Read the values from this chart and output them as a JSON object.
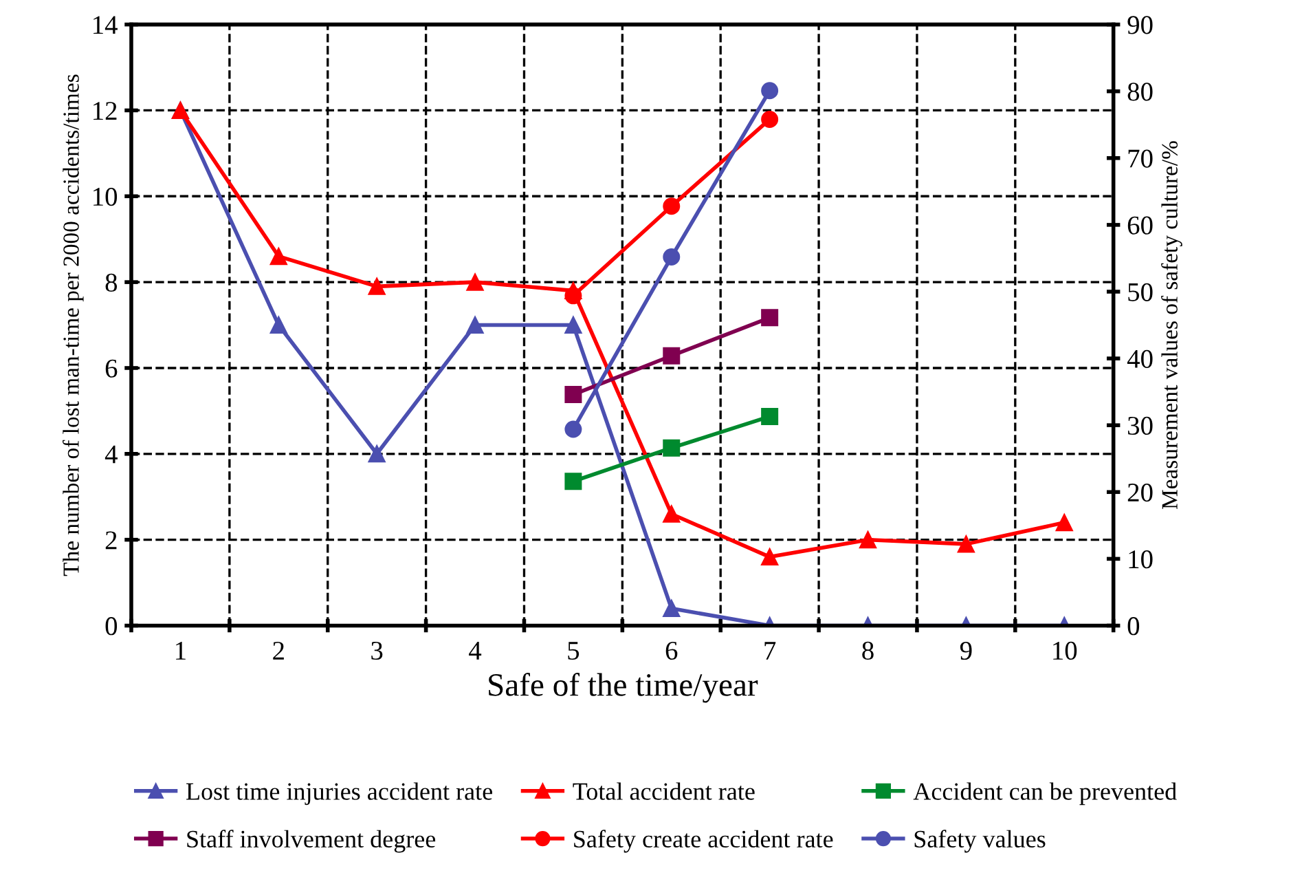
{
  "chart_data": {
    "type": "line",
    "xlabel": "Safe of the time/year",
    "ylabel": "The number of lost man-time per 2000 accidents/times",
    "y2label": "Measurement values of safety culture/%",
    "categories": [
      "1",
      "2",
      "3",
      "4",
      "5",
      "6",
      "7",
      "8",
      "9",
      "10"
    ],
    "series": [
      {
        "name": "Lost time injuries accident rate",
        "color": "#4b4fb0",
        "marker": "triangle",
        "values": [
          12,
          7,
          4,
          7,
          7,
          0.4,
          0,
          0,
          0,
          0
        ]
      },
      {
        "name": "Total accident rate",
        "color": "#ff0000",
        "marker": "triangle",
        "values": [
          12,
          8.6,
          7.9,
          8.0,
          7.8,
          2.6,
          1.6,
          2.0,
          1.9,
          2.4
        ]
      },
      {
        "name": "Accident can be prevented",
        "color": "#008a2e",
        "marker": "square",
        "axis": "y2",
        "values": [
          null,
          null,
          null,
          null,
          21.6,
          26.6,
          31.3,
          null,
          null,
          null
        ]
      },
      {
        "name": "Staff involvement degree",
        "color": "#800050",
        "marker": "square",
        "axis": "y2",
        "values": [
          null,
          null,
          null,
          null,
          34.6,
          40.4,
          46.1,
          null,
          null,
          null
        ]
      },
      {
        "name": "Safety create accident rate",
        "color": "#ff0000",
        "marker": "circle",
        "axis": "y2",
        "values": [
          null,
          null,
          null,
          null,
          49.4,
          62.8,
          75.8,
          null,
          null,
          null
        ]
      },
      {
        "name": "Safety values",
        "color": "#4b4fb0",
        "marker": "circle",
        "axis": "y2",
        "values": [
          null,
          null,
          null,
          null,
          29.4,
          55.2,
          80.1,
          null,
          null,
          null
        ]
      }
    ],
    "ylim": [
      0,
      14
    ],
    "yticks": [
      0,
      2,
      4,
      6,
      8,
      10,
      12,
      14
    ],
    "y2lim": [
      0,
      90
    ],
    "y2ticks": [
      0,
      10,
      20,
      30,
      40,
      50,
      60,
      70,
      80,
      90
    ],
    "grid": true,
    "legend": "bottom",
    "line_style": "solid"
  }
}
